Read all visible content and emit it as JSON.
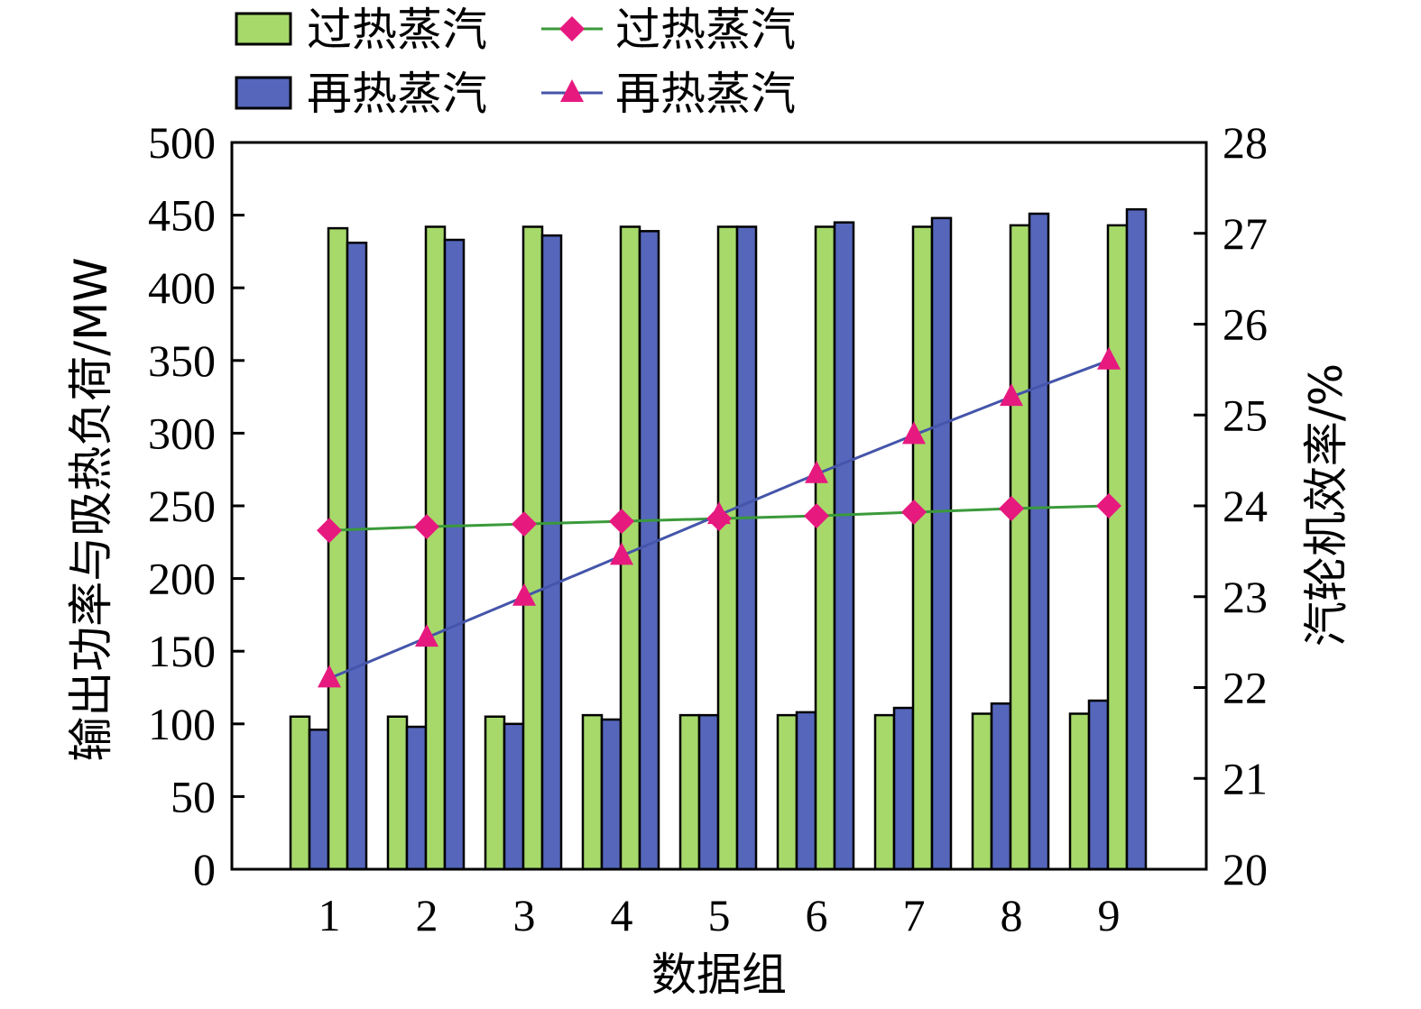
{
  "chart_data": {
    "type": "bar",
    "categories": [
      "1",
      "2",
      "3",
      "4",
      "5",
      "6",
      "7",
      "8",
      "9"
    ],
    "xlabel": "数据组",
    "ylabel_left": "输出功率与吸热负荷/MW",
    "ylabel_right": "汽轮机效率/%",
    "ylim_left": [
      0,
      500
    ],
    "yticks_left": [
      0,
      50,
      100,
      150,
      200,
      250,
      300,
      350,
      400,
      450,
      500
    ],
    "ylim_right": [
      20,
      28
    ],
    "yticks_right": [
      20,
      21,
      22,
      23,
      24,
      25,
      26,
      27,
      28
    ],
    "grid": false,
    "legend_position": "top",
    "bar_series": [
      {
        "name": "过热蒸汽",
        "color": "#a6d96a",
        "groups": [
          [
            105,
            441
          ],
          [
            105,
            442
          ],
          [
            105,
            442
          ],
          [
            106,
            442
          ],
          [
            106,
            442
          ],
          [
            106,
            442
          ],
          [
            106,
            442
          ],
          [
            107,
            443
          ],
          [
            107,
            443
          ]
        ]
      },
      {
        "name": "再热蒸汽",
        "color": "#5566bb",
        "groups": [
          [
            96,
            431
          ],
          [
            98,
            433
          ],
          [
            100,
            436
          ],
          [
            103,
            439
          ],
          [
            106,
            442
          ],
          [
            108,
            445
          ],
          [
            111,
            448
          ],
          [
            114,
            451
          ],
          [
            116,
            454
          ]
        ]
      }
    ],
    "line_series": [
      {
        "name": "过热蒸汽",
        "axis": "right",
        "marker": "diamond",
        "line_color": "#3a9a3a",
        "marker_color": "#e6197f",
        "values": [
          23.73,
          23.77,
          23.8,
          23.83,
          23.86,
          23.89,
          23.93,
          23.97,
          24.0
        ]
      },
      {
        "name": "再热蒸汽",
        "axis": "right",
        "marker": "triangle",
        "line_color": "#4455aa",
        "marker_color": "#e6197f",
        "values": [
          22.1,
          22.55,
          23.0,
          23.45,
          23.9,
          24.35,
          24.78,
          25.2,
          25.6
        ]
      }
    ]
  }
}
